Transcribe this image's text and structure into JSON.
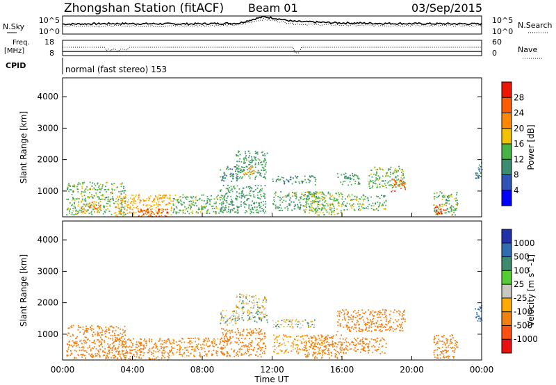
{
  "header": {
    "station": "Zhongshan Station (fitACF)",
    "beam": "Beam 01",
    "date": "03/Sep/2015"
  },
  "noise_panel": {
    "left_label": "N.Sky",
    "left_ticks": [
      "10^5",
      "10^0"
    ],
    "right_ticks": [
      "10^5",
      "10^0"
    ],
    "right_label": "N.Search",
    "sky_profile": [
      [
        0,
        0.55
      ],
      [
        0.12,
        0.58
      ],
      [
        0.3,
        0.56
      ],
      [
        0.42,
        0.6
      ],
      [
        0.46,
        0.85
      ],
      [
        0.48,
        0.95
      ],
      [
        0.5,
        0.9
      ],
      [
        0.55,
        0.7
      ],
      [
        0.65,
        0.62
      ],
      [
        0.8,
        0.58
      ],
      [
        1,
        0.56
      ]
    ],
    "search_profile": [
      [
        0,
        0.45
      ],
      [
        0.3,
        0.45
      ],
      [
        0.42,
        0.5
      ],
      [
        0.46,
        0.72
      ],
      [
        0.48,
        0.82
      ],
      [
        0.5,
        0.75
      ],
      [
        0.56,
        0.55
      ],
      [
        0.7,
        0.48
      ],
      [
        1,
        0.46
      ]
    ]
  },
  "freq_panel": {
    "left_label_1": "Freq.",
    "left_label_2": "[MHz]",
    "left_ticks": [
      "18",
      "8"
    ],
    "right_ticks": [
      "60",
      "0"
    ],
    "right_label": "Nave",
    "cpid_label": "CPID",
    "mode_text": "normal (fast stereo) 153"
  },
  "x_axis": {
    "ticks": [
      "00:00",
      "04:00",
      "08:00",
      "12:00",
      "16:00",
      "20:00",
      "00:00"
    ],
    "label": "Time UT"
  },
  "power_panel": {
    "ylabel": "Slant Range [km]",
    "yticks": [
      1000,
      2000,
      3000,
      4000
    ],
    "ylim": [
      180,
      4600
    ],
    "colorbar": {
      "label": "Power [dB]",
      "ticks": [
        "4",
        "8",
        "12",
        "16",
        "20",
        "24",
        "28"
      ],
      "colors": [
        "#0000ff",
        "#2f52b5",
        "#3c8c72",
        "#47b347",
        "#f2c200",
        "#ff8800",
        "#ff5c00",
        "#ee1500"
      ]
    }
  },
  "velocity_panel": {
    "ylabel": "Slant Range [km]",
    "yticks": [
      1000,
      2000,
      3000,
      4000
    ],
    "ylim": [
      180,
      4600
    ],
    "colorbar": {
      "label": "Velocity [m s^-1]",
      "ticks": [
        "1000",
        "500",
        "100",
        "25",
        "-25",
        "-100",
        "-500",
        "-1000"
      ],
      "colors": [
        "#2233aa",
        "#2f6cb0",
        "#3d8a6e",
        "#55cc33",
        "#c8c8c0",
        "#ffaa00",
        "#f08010",
        "#ff5010",
        "#e81010"
      ]
    }
  },
  "chart_data": {
    "type": "heatmap",
    "time_range_hours": [
      0,
      24
    ],
    "range_km": [
      180,
      4600
    ],
    "power_echo_regions": [
      {
        "t0": 0.2,
        "t1": 3.6,
        "r0": 250,
        "r1": 1300,
        "power_db": 14
      },
      {
        "t0": 1.0,
        "t1": 2.2,
        "r0": 300,
        "r1": 700,
        "power_db": 22
      },
      {
        "t0": 3.0,
        "t1": 6.3,
        "r0": 200,
        "r1": 900,
        "power_db": 20
      },
      {
        "t0": 4.3,
        "t1": 6.0,
        "r0": 200,
        "r1": 450,
        "power_db": 27
      },
      {
        "t0": 6.3,
        "t1": 9.2,
        "r0": 300,
        "r1": 900,
        "power_db": 14
      },
      {
        "t0": 9.0,
        "t1": 10.0,
        "r0": 1300,
        "r1": 1800,
        "power_db": 10
      },
      {
        "t0": 9.0,
        "t1": 11.6,
        "r0": 300,
        "r1": 1200,
        "power_db": 12
      },
      {
        "t0": 9.9,
        "t1": 11.7,
        "r0": 1400,
        "r1": 2300,
        "power_db": 12
      },
      {
        "t0": 10.3,
        "t1": 11.0,
        "r0": 1550,
        "r1": 1850,
        "power_db": 18
      },
      {
        "t0": 12.0,
        "t1": 14.5,
        "r0": 1200,
        "r1": 1500,
        "power_db": 10
      },
      {
        "t0": 12.0,
        "t1": 15.0,
        "r0": 400,
        "r1": 1000,
        "power_db": 13
      },
      {
        "t0": 13.8,
        "t1": 16.0,
        "r0": 250,
        "r1": 1000,
        "power_db": 15
      },
      {
        "t0": 15.7,
        "t1": 17.0,
        "r0": 1200,
        "r1": 1600,
        "power_db": 12
      },
      {
        "t0": 16.0,
        "t1": 18.5,
        "r0": 400,
        "r1": 900,
        "power_db": 14
      },
      {
        "t0": 17.5,
        "t1": 19.6,
        "r0": 1100,
        "r1": 1800,
        "power_db": 14
      },
      {
        "t0": 18.8,
        "t1": 19.6,
        "r0": 1000,
        "r1": 1400,
        "power_db": 25
      },
      {
        "t0": 21.2,
        "t1": 22.6,
        "r0": 250,
        "r1": 1000,
        "power_db": 14
      },
      {
        "t0": 21.3,
        "t1": 22.0,
        "r0": 250,
        "r1": 600,
        "power_db": 27
      },
      {
        "t0": 23.6,
        "t1": 24.0,
        "r0": 1400,
        "r1": 2000,
        "power_db": 9
      }
    ],
    "velocity_echo_regions": [
      {
        "t0": 0.2,
        "t1": 3.6,
        "r0": 250,
        "r1": 1300,
        "velocity_ms": -300
      },
      {
        "t0": 3.0,
        "t1": 6.3,
        "r0": 200,
        "r1": 900,
        "velocity_ms": -200
      },
      {
        "t0": 6.3,
        "t1": 9.2,
        "r0": 300,
        "r1": 900,
        "velocity_ms": -150
      },
      {
        "t0": 9.0,
        "t1": 10.0,
        "r0": 1300,
        "r1": 1800,
        "velocity_ms": 0
      },
      {
        "t0": 9.0,
        "t1": 11.6,
        "r0": 300,
        "r1": 1200,
        "velocity_ms": -200
      },
      {
        "t0": 9.9,
        "t1": 11.7,
        "r0": 1400,
        "r1": 2300,
        "velocity_ms": 0
      },
      {
        "t0": 12.0,
        "t1": 14.5,
        "r0": 1200,
        "r1": 1500,
        "velocity_ms": 0
      },
      {
        "t0": 12.0,
        "t1": 15.0,
        "r0": 400,
        "r1": 1000,
        "velocity_ms": -80
      },
      {
        "t0": 13.8,
        "t1": 16.0,
        "r0": 250,
        "r1": 1000,
        "velocity_ms": -200
      },
      {
        "t0": 16.0,
        "t1": 18.5,
        "r0": 400,
        "r1": 900,
        "velocity_ms": -200
      },
      {
        "t0": 15.7,
        "t1": 19.6,
        "r0": 1100,
        "r1": 1800,
        "velocity_ms": -400
      },
      {
        "t0": 21.2,
        "t1": 22.6,
        "r0": 250,
        "r1": 1000,
        "velocity_ms": -200
      },
      {
        "t0": 23.6,
        "t1": 24.0,
        "r0": 1400,
        "r1": 2000,
        "velocity_ms": 300
      }
    ]
  }
}
